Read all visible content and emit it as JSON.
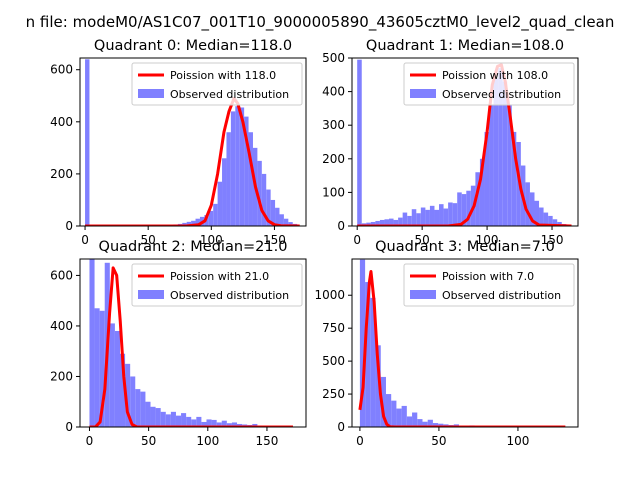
{
  "figure": {
    "suptitle": "n file: modeM0/AS1C07_001T10_9000005890_43605cztM0_level2_quad_clean"
  },
  "colors": {
    "hist": "#8080ff",
    "fit": "#ff0000",
    "axis": "#000000",
    "legend_border": "#cccccc"
  },
  "chart_data": [
    {
      "type": "bar",
      "title": "Quadrant 0: Median=118.0",
      "xlabel": "",
      "ylabel": "",
      "xlim": [
        -4,
        175
      ],
      "ylim": [
        0,
        645
      ],
      "xticks": [
        0,
        50,
        100,
        150
      ],
      "yticks": [
        0,
        200,
        400,
        600
      ],
      "grid": false,
      "legend_position": "upper right",
      "bin_width": 3.5,
      "hist_counts": [
        {
          "x": 0,
          "y": 640
        },
        {
          "x": 3.5,
          "y": 3
        },
        {
          "x": 7,
          "y": 2
        },
        {
          "x": 10.5,
          "y": 2
        },
        {
          "x": 14,
          "y": 2
        },
        {
          "x": 17.5,
          "y": 1
        },
        {
          "x": 21,
          "y": 2
        },
        {
          "x": 24.5,
          "y": 1
        },
        {
          "x": 28,
          "y": 1
        },
        {
          "x": 31.5,
          "y": 1
        },
        {
          "x": 35,
          "y": 1
        },
        {
          "x": 38.5,
          "y": 1
        },
        {
          "x": 42,
          "y": 2
        },
        {
          "x": 45.5,
          "y": 1
        },
        {
          "x": 49,
          "y": 1
        },
        {
          "x": 52.5,
          "y": 2
        },
        {
          "x": 56,
          "y": 2
        },
        {
          "x": 59.5,
          "y": 3
        },
        {
          "x": 63,
          "y": 3
        },
        {
          "x": 66.5,
          "y": 4
        },
        {
          "x": 70,
          "y": 6
        },
        {
          "x": 73.5,
          "y": 8
        },
        {
          "x": 77,
          "y": 12
        },
        {
          "x": 80.5,
          "y": 16
        },
        {
          "x": 84,
          "y": 20
        },
        {
          "x": 87.5,
          "y": 28
        },
        {
          "x": 91,
          "y": 35
        },
        {
          "x": 94.5,
          "y": 42
        },
        {
          "x": 98,
          "y": 58
        },
        {
          "x": 101.5,
          "y": 85
        },
        {
          "x": 105,
          "y": 170
        },
        {
          "x": 108.5,
          "y": 260
        },
        {
          "x": 112,
          "y": 360
        },
        {
          "x": 115.5,
          "y": 440
        },
        {
          "x": 119,
          "y": 460
        },
        {
          "x": 122.5,
          "y": 455
        },
        {
          "x": 126,
          "y": 420
        },
        {
          "x": 129.5,
          "y": 360
        },
        {
          "x": 133,
          "y": 300
        },
        {
          "x": 136.5,
          "y": 250
        },
        {
          "x": 140,
          "y": 200
        },
        {
          "x": 143.5,
          "y": 140
        },
        {
          "x": 147,
          "y": 100
        },
        {
          "x": 150.5,
          "y": 70
        },
        {
          "x": 154,
          "y": 45
        },
        {
          "x": 157.5,
          "y": 28
        },
        {
          "x": 161,
          "y": 15
        },
        {
          "x": 164.5,
          "y": 8
        }
      ],
      "fit_curve": [
        {
          "x": 0,
          "y": 0
        },
        {
          "x": 80,
          "y": 0
        },
        {
          "x": 90,
          "y": 5
        },
        {
          "x": 95,
          "y": 20
        },
        {
          "x": 100,
          "y": 80
        },
        {
          "x": 105,
          "y": 200
        },
        {
          "x": 110,
          "y": 360
        },
        {
          "x": 114,
          "y": 440
        },
        {
          "x": 118,
          "y": 490
        },
        {
          "x": 121,
          "y": 470
        },
        {
          "x": 125,
          "y": 400
        },
        {
          "x": 130,
          "y": 280
        },
        {
          "x": 135,
          "y": 150
        },
        {
          "x": 140,
          "y": 60
        },
        {
          "x": 145,
          "y": 20
        },
        {
          "x": 150,
          "y": 5
        },
        {
          "x": 155,
          "y": 1
        },
        {
          "x": 170,
          "y": 0
        }
      ],
      "legend": [
        "Poission with 118.0",
        "Observed distribution"
      ]
    },
    {
      "type": "bar",
      "title": "Quadrant 1: Median=108.0",
      "xlabel": "",
      "ylabel": "",
      "xlim": [
        -4,
        170
      ],
      "ylim": [
        0,
        500
      ],
      "xticks": [
        0,
        50,
        100,
        150
      ],
      "yticks": [
        0,
        100,
        200,
        300,
        400,
        500
      ],
      "grid": false,
      "legend_position": "upper right",
      "bin_width": 3.5,
      "hist_counts": [
        {
          "x": 0,
          "y": 495
        },
        {
          "x": 3.5,
          "y": 8
        },
        {
          "x": 7,
          "y": 10
        },
        {
          "x": 10.5,
          "y": 12
        },
        {
          "x": 14,
          "y": 15
        },
        {
          "x": 17.5,
          "y": 18
        },
        {
          "x": 21,
          "y": 20
        },
        {
          "x": 24.5,
          "y": 22
        },
        {
          "x": 28,
          "y": 18
        },
        {
          "x": 31.5,
          "y": 25
        },
        {
          "x": 35,
          "y": 40
        },
        {
          "x": 38.5,
          "y": 30
        },
        {
          "x": 42,
          "y": 50
        },
        {
          "x": 45.5,
          "y": 38
        },
        {
          "x": 49,
          "y": 55
        },
        {
          "x": 52.5,
          "y": 48
        },
        {
          "x": 56,
          "y": 60
        },
        {
          "x": 59.5,
          "y": 48
        },
        {
          "x": 63,
          "y": 65
        },
        {
          "x": 66.5,
          "y": 52
        },
        {
          "x": 70,
          "y": 70
        },
        {
          "x": 73.5,
          "y": 68
        },
        {
          "x": 77,
          "y": 100
        },
        {
          "x": 80.5,
          "y": 95
        },
        {
          "x": 84,
          "y": 105
        },
        {
          "x": 87.5,
          "y": 120
        },
        {
          "x": 91,
          "y": 160
        },
        {
          "x": 94.5,
          "y": 200
        },
        {
          "x": 98,
          "y": 280
        },
        {
          "x": 101.5,
          "y": 360
        },
        {
          "x": 105,
          "y": 440
        },
        {
          "x": 108.5,
          "y": 470
        },
        {
          "x": 112,
          "y": 430
        },
        {
          "x": 115.5,
          "y": 360
        },
        {
          "x": 119,
          "y": 280
        },
        {
          "x": 122.5,
          "y": 250
        },
        {
          "x": 126,
          "y": 180
        },
        {
          "x": 129.5,
          "y": 130
        },
        {
          "x": 133,
          "y": 100
        },
        {
          "x": 136.5,
          "y": 75
        },
        {
          "x": 140,
          "y": 55
        },
        {
          "x": 143.5,
          "y": 40
        },
        {
          "x": 147,
          "y": 30
        },
        {
          "x": 150.5,
          "y": 20
        },
        {
          "x": 154,
          "y": 12
        },
        {
          "x": 157.5,
          "y": 6
        }
      ],
      "fit_curve": [
        {
          "x": 0,
          "y": 0
        },
        {
          "x": 70,
          "y": 0
        },
        {
          "x": 80,
          "y": 5
        },
        {
          "x": 85,
          "y": 20
        },
        {
          "x": 90,
          "y": 60
        },
        {
          "x": 95,
          "y": 140
        },
        {
          "x": 100,
          "y": 280
        },
        {
          "x": 104,
          "y": 420
        },
        {
          "x": 108,
          "y": 475
        },
        {
          "x": 111,
          "y": 480
        },
        {
          "x": 114,
          "y": 430
        },
        {
          "x": 118,
          "y": 320
        },
        {
          "x": 122,
          "y": 200
        },
        {
          "x": 126,
          "y": 110
        },
        {
          "x": 130,
          "y": 50
        },
        {
          "x": 135,
          "y": 15
        },
        {
          "x": 140,
          "y": 3
        },
        {
          "x": 165,
          "y": 0
        }
      ],
      "legend": [
        "Poission with 108.0",
        "Observed distribution"
      ]
    },
    {
      "type": "bar",
      "title": "Quadrant 2: Median=21.0",
      "xlabel": "",
      "ylabel": "",
      "xlim": [
        -8,
        183
      ],
      "ylim": [
        0,
        665
      ],
      "xticks": [
        0,
        50,
        100,
        150
      ],
      "yticks": [
        0,
        200,
        400,
        600
      ],
      "grid": false,
      "legend_position": "upper right",
      "bin_width": 4.3,
      "hist_counts": [
        {
          "x": 0,
          "y": 665
        },
        {
          "x": 4.3,
          "y": 470
        },
        {
          "x": 8.6,
          "y": 460
        },
        {
          "x": 12.9,
          "y": 650
        },
        {
          "x": 17.2,
          "y": 410
        },
        {
          "x": 21.5,
          "y": 380
        },
        {
          "x": 25.8,
          "y": 290
        },
        {
          "x": 30.1,
          "y": 250
        },
        {
          "x": 34.4,
          "y": 200
        },
        {
          "x": 38.7,
          "y": 150
        },
        {
          "x": 43,
          "y": 140
        },
        {
          "x": 47.3,
          "y": 100
        },
        {
          "x": 51.6,
          "y": 80
        },
        {
          "x": 55.9,
          "y": 75
        },
        {
          "x": 60.2,
          "y": 60
        },
        {
          "x": 64.5,
          "y": 50
        },
        {
          "x": 68.8,
          "y": 60
        },
        {
          "x": 73.1,
          "y": 45
        },
        {
          "x": 77.4,
          "y": 55
        },
        {
          "x": 81.7,
          "y": 40
        },
        {
          "x": 86,
          "y": 30
        },
        {
          "x": 90.3,
          "y": 40
        },
        {
          "x": 94.6,
          "y": 20
        },
        {
          "x": 98.9,
          "y": 30
        },
        {
          "x": 103.2,
          "y": 28
        },
        {
          "x": 107.5,
          "y": 18
        },
        {
          "x": 111.8,
          "y": 25
        },
        {
          "x": 116.1,
          "y": 15
        },
        {
          "x": 120.4,
          "y": 18
        },
        {
          "x": 124.7,
          "y": 12
        },
        {
          "x": 129,
          "y": 10
        },
        {
          "x": 133.3,
          "y": 8
        },
        {
          "x": 137.6,
          "y": 12
        },
        {
          "x": 141.9,
          "y": 6
        },
        {
          "x": 146.2,
          "y": 5
        },
        {
          "x": 150.5,
          "y": 4
        },
        {
          "x": 154.8,
          "y": 3
        },
        {
          "x": 159.1,
          "y": 3
        },
        {
          "x": 163.4,
          "y": 2
        },
        {
          "x": 167.7,
          "y": 2
        }
      ],
      "fit_curve": [
        {
          "x": 0,
          "y": 0
        },
        {
          "x": 5,
          "y": 0
        },
        {
          "x": 9,
          "y": 20
        },
        {
          "x": 13,
          "y": 150
        },
        {
          "x": 17,
          "y": 450
        },
        {
          "x": 20,
          "y": 630
        },
        {
          "x": 23,
          "y": 600
        },
        {
          "x": 26,
          "y": 420
        },
        {
          "x": 29,
          "y": 200
        },
        {
          "x": 32,
          "y": 60
        },
        {
          "x": 36,
          "y": 10
        },
        {
          "x": 40,
          "y": 0
        },
        {
          "x": 172,
          "y": 0
        }
      ],
      "legend": [
        "Poission with 21.0",
        "Observed distribution"
      ]
    },
    {
      "type": "bar",
      "title": "Quadrant 3: Median=7.0",
      "xlabel": "",
      "ylabel": "",
      "xlim": [
        -5,
        138
      ],
      "ylim": [
        0,
        1275
      ],
      "xticks": [
        0,
        50,
        100
      ],
      "yticks": [
        0,
        250,
        500,
        750,
        1000
      ],
      "grid": false,
      "legend_position": "upper right",
      "bin_width": 3.3,
      "hist_counts": [
        {
          "x": 0,
          "y": 1270
        },
        {
          "x": 3.3,
          "y": 1100
        },
        {
          "x": 6.6,
          "y": 980
        },
        {
          "x": 9.9,
          "y": 620
        },
        {
          "x": 13.2,
          "y": 380
        },
        {
          "x": 16.5,
          "y": 250
        },
        {
          "x": 19.8,
          "y": 200
        },
        {
          "x": 23.1,
          "y": 140
        },
        {
          "x": 26.4,
          "y": 160
        },
        {
          "x": 29.7,
          "y": 80
        },
        {
          "x": 33,
          "y": 110
        },
        {
          "x": 36.3,
          "y": 60
        },
        {
          "x": 39.6,
          "y": 40
        },
        {
          "x": 42.9,
          "y": 55
        },
        {
          "x": 46.2,
          "y": 30
        },
        {
          "x": 49.5,
          "y": 25
        },
        {
          "x": 52.8,
          "y": 20
        },
        {
          "x": 56.1,
          "y": 15
        },
        {
          "x": 59.4,
          "y": 20
        },
        {
          "x": 62.7,
          "y": 10
        },
        {
          "x": 66,
          "y": 8
        },
        {
          "x": 69.3,
          "y": 12
        },
        {
          "x": 72.6,
          "y": 6
        },
        {
          "x": 75.9,
          "y": 5
        },
        {
          "x": 79.2,
          "y": 4
        },
        {
          "x": 82.5,
          "y": 4
        },
        {
          "x": 85.8,
          "y": 3
        },
        {
          "x": 89.1,
          "y": 3
        },
        {
          "x": 92.4,
          "y": 2
        },
        {
          "x": 95.7,
          "y": 2
        },
        {
          "x": 99,
          "y": 2
        },
        {
          "x": 102.3,
          "y": 1
        },
        {
          "x": 105.6,
          "y": 1
        },
        {
          "x": 108.9,
          "y": 1
        },
        {
          "x": 112.2,
          "y": 1
        },
        {
          "x": 115.5,
          "y": 1
        },
        {
          "x": 118.8,
          "y": 1
        },
        {
          "x": 122.1,
          "y": 1
        },
        {
          "x": 125.4,
          "y": 1
        }
      ],
      "fit_curve": [
        {
          "x": 0,
          "y": 130
        },
        {
          "x": 2,
          "y": 300
        },
        {
          "x": 4,
          "y": 750
        },
        {
          "x": 6,
          "y": 1100
        },
        {
          "x": 7,
          "y": 1180
        },
        {
          "x": 9,
          "y": 950
        },
        {
          "x": 11,
          "y": 550
        },
        {
          "x": 13,
          "y": 250
        },
        {
          "x": 15,
          "y": 80
        },
        {
          "x": 17,
          "y": 20
        },
        {
          "x": 19,
          "y": 2
        },
        {
          "x": 22,
          "y": 0
        },
        {
          "x": 130,
          "y": 0
        }
      ],
      "legend": [
        "Poission with 7.0",
        "Observed distribution"
      ]
    }
  ]
}
